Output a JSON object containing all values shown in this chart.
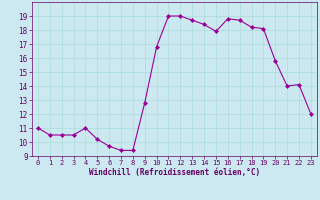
{
  "x": [
    0,
    1,
    2,
    3,
    4,
    5,
    6,
    7,
    8,
    9,
    10,
    11,
    12,
    13,
    14,
    15,
    16,
    17,
    18,
    19,
    20,
    21,
    22,
    23
  ],
  "y": [
    11.0,
    10.5,
    10.5,
    10.5,
    11.0,
    10.2,
    9.7,
    9.4,
    9.4,
    12.8,
    16.8,
    19.0,
    19.0,
    18.7,
    18.4,
    17.9,
    18.8,
    18.7,
    18.2,
    18.1,
    15.8,
    14.0,
    14.1,
    12.0
  ],
  "line_color": "#990099",
  "marker": "D",
  "marker_size": 2,
  "bg_color": "#cce8f0",
  "grid_color": "#aadddd",
  "xlabel": "Windchill (Refroidissement éolien,°C)",
  "xlabel_color": "#660066",
  "tick_color": "#660066",
  "ylim": [
    9,
    20
  ],
  "xlim": [
    -0.5,
    23.5
  ],
  "yticks": [
    9,
    10,
    11,
    12,
    13,
    14,
    15,
    16,
    17,
    18,
    19
  ],
  "xticks": [
    0,
    1,
    2,
    3,
    4,
    5,
    6,
    7,
    8,
    9,
    10,
    11,
    12,
    13,
    14,
    15,
    16,
    17,
    18,
    19,
    20,
    21,
    22,
    23
  ]
}
